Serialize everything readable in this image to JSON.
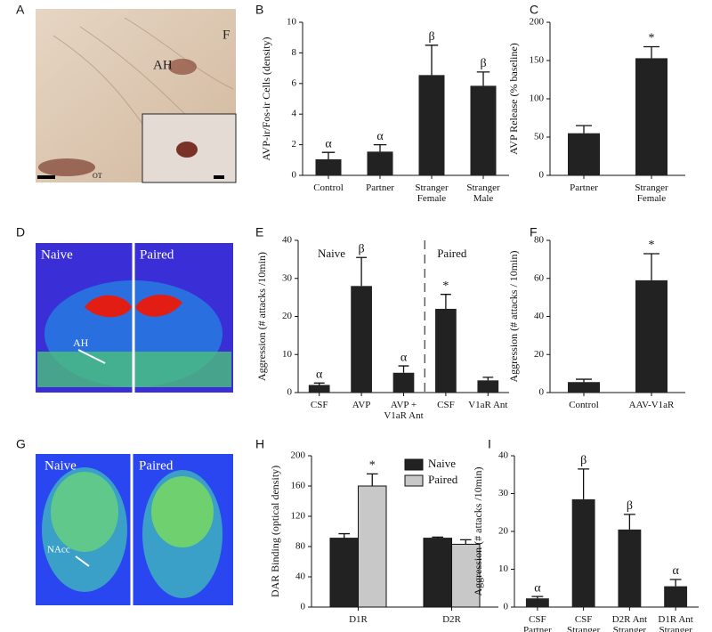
{
  "panel_letters": [
    "A",
    "B",
    "C",
    "D",
    "E",
    "F",
    "G",
    "H",
    "I"
  ],
  "image_labels": {
    "A": [
      "F",
      "AH",
      "OT"
    ],
    "D": [
      "Naive",
      "Paired",
      "AH"
    ],
    "G": [
      "Naive",
      "Paired",
      "NAcc"
    ]
  },
  "chart_data": [
    {
      "type": "bar",
      "ylabel": "AVP-ir/Fos-ir Cells (density)",
      "categories": [
        "Control",
        "Partner",
        "Stranger\nFemale",
        "Stranger\nMale"
      ],
      "values": [
        1.05,
        1.55,
        6.55,
        5.85
      ],
      "errors": [
        0.45,
        0.45,
        1.95,
        0.9
      ],
      "marks": [
        "α",
        "α",
        "β",
        "β"
      ],
      "color": "#222222",
      "ylim": [
        0,
        10
      ],
      "yticks": [
        0,
        2,
        4,
        6,
        8,
        10
      ]
    },
    {
      "type": "bar",
      "ylabel": "AVP Release (% baseline)",
      "categories": [
        "Partner",
        "Stranger\nFemale"
      ],
      "values": [
        55,
        153
      ],
      "errors": [
        10,
        15
      ],
      "marks": [
        null,
        "*"
      ],
      "color": "#222222",
      "ylim": [
        0,
        200
      ],
      "yticks": [
        0,
        50,
        100,
        150,
        200
      ]
    },
    {
      "type": "bar",
      "ylabel": "Aggression  (# attacks /10min)",
      "categories": [
        "CSF",
        "AVP",
        "AVP +\nV1aR Ant",
        "CSF",
        "V1aR Ant"
      ],
      "values": [
        2,
        28,
        5.2,
        22,
        3.2
      ],
      "errors": [
        0.5,
        7.5,
        1.8,
        3.8,
        0.8
      ],
      "marks": [
        "α",
        "β",
        "α",
        "*",
        null
      ],
      "group_labels": [
        "Naive",
        "Paired"
      ],
      "color": "#222222",
      "ylim": [
        0,
        40
      ],
      "yticks": [
        0,
        10,
        20,
        30,
        40
      ]
    },
    {
      "type": "bar",
      "ylabel": "Aggression (# attacks / 10min)",
      "categories": [
        "Control",
        "AAV-V1aR"
      ],
      "values": [
        5.5,
        59
      ],
      "errors": [
        1.5,
        14
      ],
      "marks": [
        null,
        "*"
      ],
      "color": "#222222",
      "ylim": [
        0,
        80
      ],
      "yticks": [
        0,
        20,
        40,
        60,
        80
      ]
    },
    {
      "type": "grouped-bar",
      "ylabel": "DAR Binding (optical density)",
      "categories": [
        "D1R",
        "D2R"
      ],
      "series": [
        {
          "name": "Naive",
          "color": "#222222",
          "values": [
            91,
            91
          ],
          "errors": [
            6,
            1.5
          ],
          "marks": [
            null,
            null
          ]
        },
        {
          "name": "Paired",
          "color": "#c8c8c8",
          "values": [
            160,
            83
          ],
          "errors": [
            16,
            6
          ],
          "marks": [
            "*",
            null
          ]
        }
      ],
      "ylim": [
        0,
        200
      ],
      "yticks": [
        0,
        40,
        80,
        120,
        160,
        200
      ]
    },
    {
      "type": "bar",
      "ylabel": "Aggression  (# attacks /10min)",
      "categories": [
        "CSF\nPartner",
        "CSF\nStranger",
        "D2R Ant\nStranger",
        "D1R Ant\nStranger"
      ],
      "values": [
        2.3,
        28.5,
        20.5,
        5.5
      ],
      "errors": [
        0.5,
        8,
        4,
        1.8
      ],
      "marks": [
        "α",
        "β",
        "β",
        "α"
      ],
      "color": "#222222",
      "ylim": [
        0,
        40
      ],
      "yticks": [
        0,
        10,
        20,
        30,
        40
      ]
    }
  ]
}
